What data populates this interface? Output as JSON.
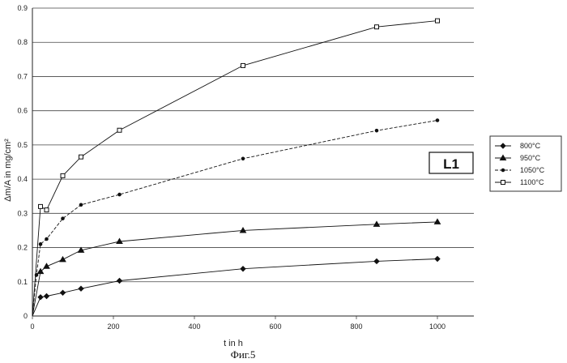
{
  "chart_data": {
    "type": "line",
    "xlabel": "t in h",
    "ylabel": "Δm/A in mg/cm²",
    "xlim": [
      0,
      1000
    ],
    "ylim": [
      0,
      0.9
    ],
    "x_ticks": [
      "0",
      "200",
      "400",
      "600",
      "800",
      "1000"
    ],
    "y_ticks": [
      "0",
      "0.1",
      "0.2",
      "0.3",
      "0.4",
      "0.5",
      "0.6",
      "0.7",
      "0.8",
      "0.9"
    ],
    "grid": "horizontal",
    "legend_position": "right",
    "annotation": "L1",
    "caption": "Фиг.5",
    "series": [
      {
        "name": "800°C",
        "marker": "diamond",
        "dash": "solid",
        "x": [
          0,
          20,
          35,
          75,
          120,
          215,
          520,
          850,
          1000
        ],
        "y": [
          0,
          0.055,
          0.058,
          0.068,
          0.08,
          0.103,
          0.138,
          0.16,
          0.167
        ]
      },
      {
        "name": "950°C",
        "marker": "triangle",
        "dash": "solid",
        "x": [
          0,
          20,
          35,
          75,
          120,
          215,
          520,
          850,
          1000
        ],
        "y": [
          0,
          0.13,
          0.145,
          0.165,
          0.192,
          0.218,
          0.25,
          0.268,
          0.275
        ]
      },
      {
        "name": "1050°C",
        "marker": "circle",
        "dash": "dashed",
        "x": [
          0,
          10,
          20,
          35,
          75,
          120,
          215,
          520,
          850,
          1000
        ],
        "y": [
          0,
          0.12,
          0.21,
          0.225,
          0.285,
          0.325,
          0.355,
          0.46,
          0.542,
          0.572
        ]
      },
      {
        "name": "1100°C",
        "marker": "square",
        "dash": "solid",
        "x": [
          0,
          20,
          35,
          75,
          120,
          215,
          520,
          850,
          1000
        ],
        "y": [
          0,
          0.32,
          0.31,
          0.41,
          0.465,
          0.543,
          0.732,
          0.845,
          0.863
        ]
      }
    ]
  }
}
